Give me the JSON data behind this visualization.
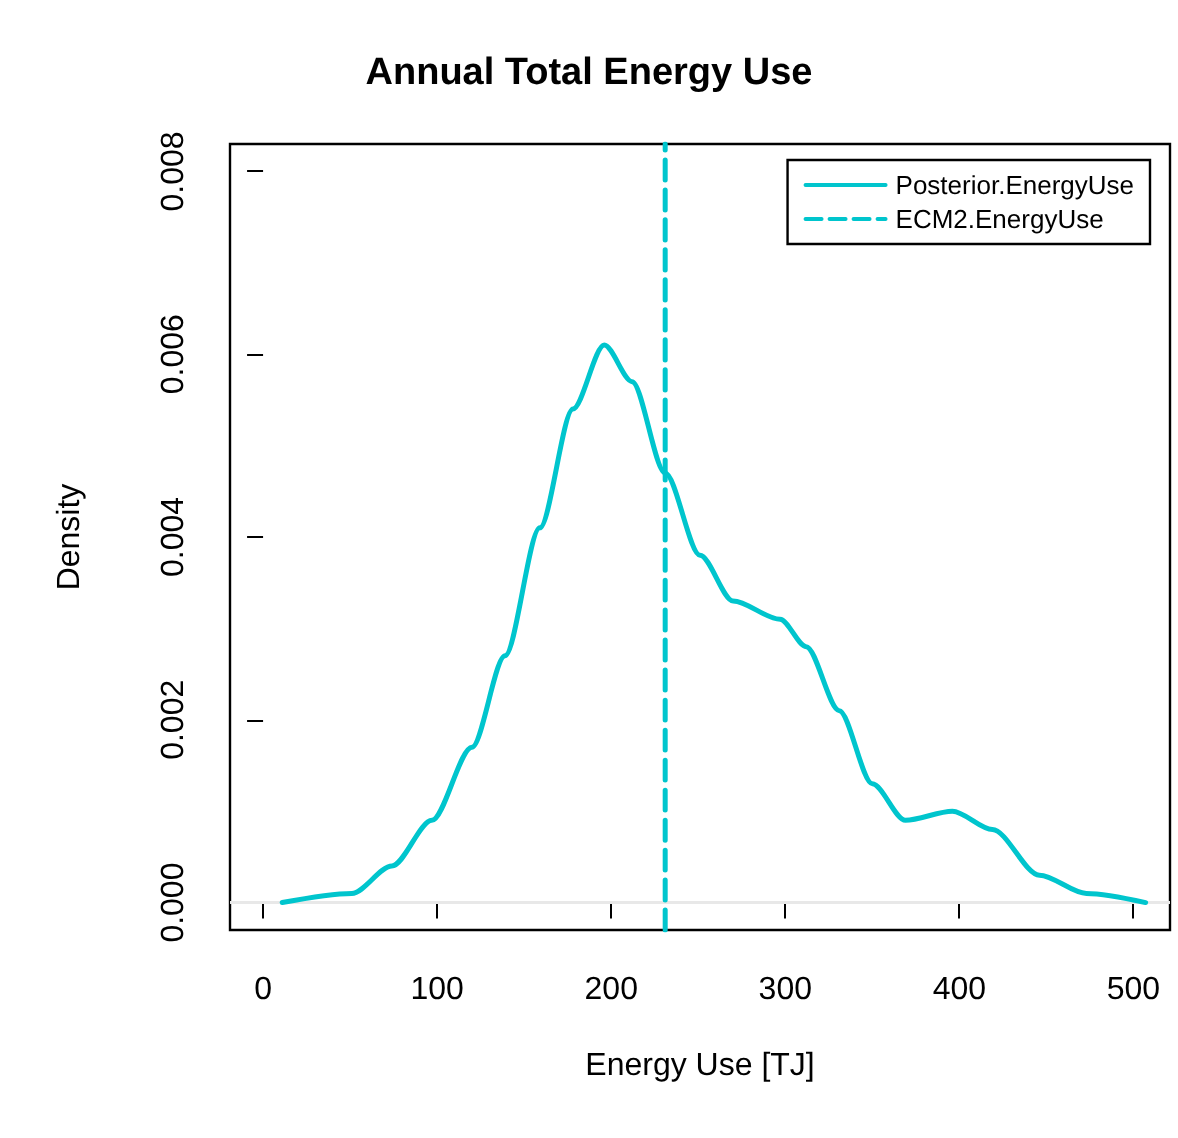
{
  "chart_data": {
    "type": "line",
    "title": "Annual Total Energy Use",
    "xlabel": "Energy Use [TJ]",
    "ylabel": "Density",
    "series": [
      {
        "name": "Posterior.EnergyUse",
        "color": "#00c5cd",
        "x": [
          11,
          51,
          74,
          97,
          120,
          139,
          159,
          178,
          196,
          212,
          231,
          251,
          270,
          297,
          312,
          331,
          350,
          369,
          396,
          419,
          446,
          473,
          507
        ],
        "values": [
          0,
          0.0001,
          0.0004,
          0.0009,
          0.0017,
          0.0027,
          0.0041,
          0.0054,
          0.0061,
          0.0057,
          0.0047,
          0.0038,
          0.0033,
          0.0031,
          0.0028,
          0.0021,
          0.0013,
          0.0009,
          0.001,
          0.0008,
          0.0003,
          0.0001,
          0
        ],
        "line_style": "solid"
      },
      {
        "name": "ECM2.EnergyUse",
        "color": "#00c5cd",
        "x": [
          231,
          231
        ],
        "values": [
          -0.0003,
          0.0083
        ],
        "line_style": "dashed"
      }
    ],
    "ref_lines": [
      {
        "axis": "y",
        "value": 0,
        "color": "#e8e8e8",
        "line_style": "solid"
      }
    ],
    "xlim": [
      -19,
      521
    ],
    "xticks": [
      0,
      100,
      200,
      300,
      400,
      500
    ],
    "ylim": [
      -0.0003,
      0.0083
    ],
    "yticks": [
      {
        "value": 0,
        "label": "0.000"
      },
      {
        "value": 0.002,
        "label": "0.002"
      },
      {
        "value": 0.004,
        "label": "0.004"
      },
      {
        "value": 0.006,
        "label": "0.006"
      },
      {
        "value": 0.008,
        "label": "0.008"
      }
    ],
    "legend": "top right",
    "grid": false,
    "marker": "none"
  }
}
